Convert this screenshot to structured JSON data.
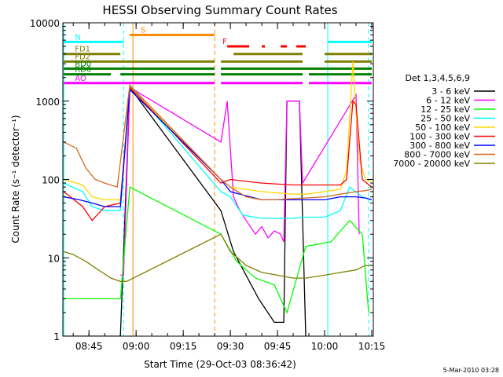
{
  "chart_data": {
    "type": "line",
    "title": "HESSI Observing Summary Count Rates",
    "xlabel": "Start Time (29-Oct-03 08:36:42)",
    "ylabel": "Count Rate (s⁻¹ detector⁻¹)",
    "y_scale": "log",
    "ylim": [
      1,
      10000
    ],
    "xlim": [
      "08:36:42",
      "10:15:30"
    ],
    "x_ticks": [
      "08:45",
      "09:00",
      "09:15",
      "09:30",
      "09:45",
      "10:00",
      "10:15"
    ],
    "y_ticks": [
      "1",
      "10",
      "100",
      "1000",
      "10000"
    ],
    "grid": false,
    "legend": {
      "title": "Det 1,3,4,5,6,9",
      "placement": "right"
    },
    "series": [
      {
        "name": "3 - 6 keV",
        "color": "#000000",
        "x": [
          "08:37",
          "08:50",
          "08:55",
          "08:58",
          "09:27",
          "09:31",
          "09:35",
          "09:39",
          "09:44",
          "09:47",
          "09:48",
          "09:52",
          "09:54"
        ],
        "y": [
          1,
          1,
          1,
          1500,
          40,
          12,
          6,
          3,
          1.5,
          1.5,
          1000,
          1000,
          1
        ]
      },
      {
        "name": "6 - 12 keV",
        "color": "#ff00ff",
        "x": [
          "08:55",
          "08:56",
          "08:58",
          "09:27",
          "09:29",
          "09:31",
          "09:33",
          "09:35",
          "09:38",
          "09:40",
          "09:42",
          "09:44",
          "09:46",
          "09:47",
          "09:48",
          "09:52",
          "09:53",
          "10:10",
          "10:11"
        ],
        "y": [
          6,
          6,
          1500,
          300,
          1000,
          60,
          40,
          30,
          20,
          25,
          18,
          22,
          20,
          16,
          1000,
          1000,
          90,
          1200,
          20
        ]
      },
      {
        "name": "12 - 25 keV",
        "color": "#00ff00",
        "x": [
          "08:37",
          "08:45",
          "08:50",
          "08:55",
          "08:58",
          "09:27",
          "09:32",
          "09:38",
          "09:44",
          "09:48",
          "09:54",
          "10:02",
          "10:08",
          "10:12",
          "10:14"
        ],
        "y": [
          3,
          3,
          3,
          3,
          80,
          20,
          9,
          5.5,
          4.5,
          2,
          14,
          16,
          30,
          20,
          2
        ]
      },
      {
        "name": "25 - 50 keV",
        "color": "#00ffff",
        "x": [
          "08:37",
          "08:43",
          "08:46",
          "08:50",
          "08:55",
          "08:58",
          "09:27",
          "09:30",
          "09:34",
          "09:40",
          "09:45",
          "09:50",
          "09:54",
          "10:00",
          "10:05",
          "10:08",
          "10:12",
          "10:15"
        ],
        "y": [
          90,
          70,
          45,
          40,
          40,
          1600,
          70,
          60,
          35,
          32,
          32,
          32,
          33,
          33,
          40,
          80,
          60,
          55
        ]
      },
      {
        "name": "50 - 100 keV",
        "color": "#ffd700",
        "x": [
          "08:37",
          "08:43",
          "08:46",
          "08:50",
          "08:55",
          "08:58",
          "09:27",
          "09:30",
          "09:40",
          "09:50",
          "09:54",
          "10:00",
          "10:05",
          "10:07",
          "10:09",
          "10:11",
          "10:13",
          "10:15"
        ],
        "y": [
          100,
          85,
          60,
          55,
          55,
          1500,
          100,
          80,
          70,
          65,
          65,
          70,
          75,
          130,
          3200,
          180,
          100,
          95
        ]
      },
      {
        "name": "100 - 300 keV",
        "color": "#ff0000",
        "x": [
          "08:37",
          "08:43",
          "08:46",
          "08:50",
          "08:55",
          "08:58",
          "09:27",
          "09:30",
          "09:40",
          "09:50",
          "09:54",
          "10:00",
          "10:05",
          "10:07",
          "10:09",
          "10:10",
          "10:12",
          "10:15"
        ],
        "y": [
          70,
          45,
          30,
          45,
          50,
          1500,
          90,
          100,
          90,
          85,
          85,
          85,
          85,
          100,
          1000,
          900,
          100,
          80
        ]
      },
      {
        "name": "300 - 800 keV",
        "color": "#0000ff",
        "x": [
          "08:37",
          "08:42",
          "08:46",
          "08:50",
          "08:55",
          "08:58",
          "09:27",
          "09:30",
          "09:35",
          "09:40",
          "09:45",
          "09:50",
          "09:54",
          "10:00",
          "10:05",
          "10:10",
          "10:13",
          "10:15"
        ],
        "y": [
          60,
          55,
          50,
          45,
          45,
          1400,
          100,
          70,
          62,
          55,
          55,
          55,
          55,
          55,
          60,
          60,
          58,
          55
        ]
      },
      {
        "name": "800 - 7000 keV",
        "color": "#d2691e",
        "x": [
          "08:37",
          "08:41",
          "08:44",
          "08:47",
          "08:50",
          "08:54",
          "08:58",
          "09:27",
          "09:30",
          "09:35",
          "09:40",
          "09:45",
          "09:50",
          "09:54",
          "10:00",
          "10:05",
          "10:10",
          "10:13",
          "10:15"
        ],
        "y": [
          300,
          250,
          140,
          100,
          90,
          80,
          1600,
          100,
          80,
          60,
          55,
          55,
          57,
          58,
          60,
          65,
          70,
          72,
          75
        ]
      },
      {
        "name": "7000 - 20000 keV",
        "color": "#808000",
        "x": [
          "08:37",
          "08:40",
          "08:44",
          "08:48",
          "08:52",
          "08:55",
          "08:57",
          "09:27",
          "09:30",
          "09:35",
          "09:40",
          "09:45",
          "09:50",
          "09:54",
          "10:00",
          "10:05",
          "10:10",
          "10:13",
          "10:15"
        ],
        "y": [
          12,
          11,
          9,
          7,
          5.5,
          5,
          5,
          20,
          12,
          8,
          6.5,
          6,
          5.5,
          5.5,
          6,
          6.5,
          7,
          8,
          8
        ]
      }
    ],
    "flags": [
      {
        "label": "S",
        "color": "#ff8c00",
        "y": 7000,
        "segments": [
          [
            "08:58",
            "09:25"
          ]
        ]
      },
      {
        "label": "N",
        "color": "#00ffff",
        "y": 5700,
        "segments": [
          [
            "08:37",
            "08:56"
          ],
          [
            "10:01",
            "10:15"
          ]
        ]
      },
      {
        "label": "FD1",
        "color": "#808000",
        "y": 4000,
        "segments": [
          [
            "08:37",
            "08:55"
          ],
          [
            "09:31",
            "09:53"
          ],
          [
            "10:00",
            "10:15"
          ]
        ]
      },
      {
        "label": "FD2",
        "color": "#808000",
        "y": 3200,
        "segments": [
          [
            "08:37",
            "09:25"
          ],
          [
            "09:27",
            "09:53"
          ],
          [
            "10:00",
            "10:15"
          ]
        ]
      },
      {
        "label": "F",
        "color": "#ff0000",
        "y": 5000,
        "segments": [
          [
            "09:29",
            "09:36"
          ],
          [
            "09:40",
            "09:41"
          ],
          [
            "09:46",
            "09:48"
          ],
          [
            "09:51",
            "09:54"
          ]
        ]
      },
      {
        "label": "RD0",
        "color": "#008000",
        "y": 2600,
        "segments": [
          [
            "08:37",
            "09:25"
          ],
          [
            "09:27",
            "10:15"
          ]
        ]
      },
      {
        "label": "RD6",
        "color": "#008000",
        "y": 2200,
        "segments": [
          [
            "08:37",
            "08:52"
          ],
          [
            "08:55",
            "09:25"
          ],
          [
            "09:27",
            "09:53"
          ],
          [
            "09:55",
            "10:15"
          ]
        ]
      },
      {
        "label": "AO",
        "color": "#ff00ff",
        "y": 1700,
        "segments": [
          [
            "08:37",
            "09:25"
          ],
          [
            "09:27",
            "09:53"
          ],
          [
            "09:55",
            "10:15"
          ]
        ]
      }
    ],
    "vertical_markers": [
      {
        "x": "08:37",
        "style": "solid",
        "color": "#00ffff"
      },
      {
        "x": "08:56",
        "style": "dashed",
        "color": "#00ffff"
      },
      {
        "x": "08:59",
        "style": "solid",
        "color": "#ff8c00"
      },
      {
        "x": "09:25",
        "style": "dashed",
        "color": "#ff8c00"
      },
      {
        "x": "10:01",
        "style": "solid",
        "color": "#00ffff"
      },
      {
        "x": "10:14",
        "style": "dashed",
        "color": "#00ffff"
      }
    ]
  },
  "footer": {
    "timestamp": "5-Mar-2010 03:28"
  }
}
